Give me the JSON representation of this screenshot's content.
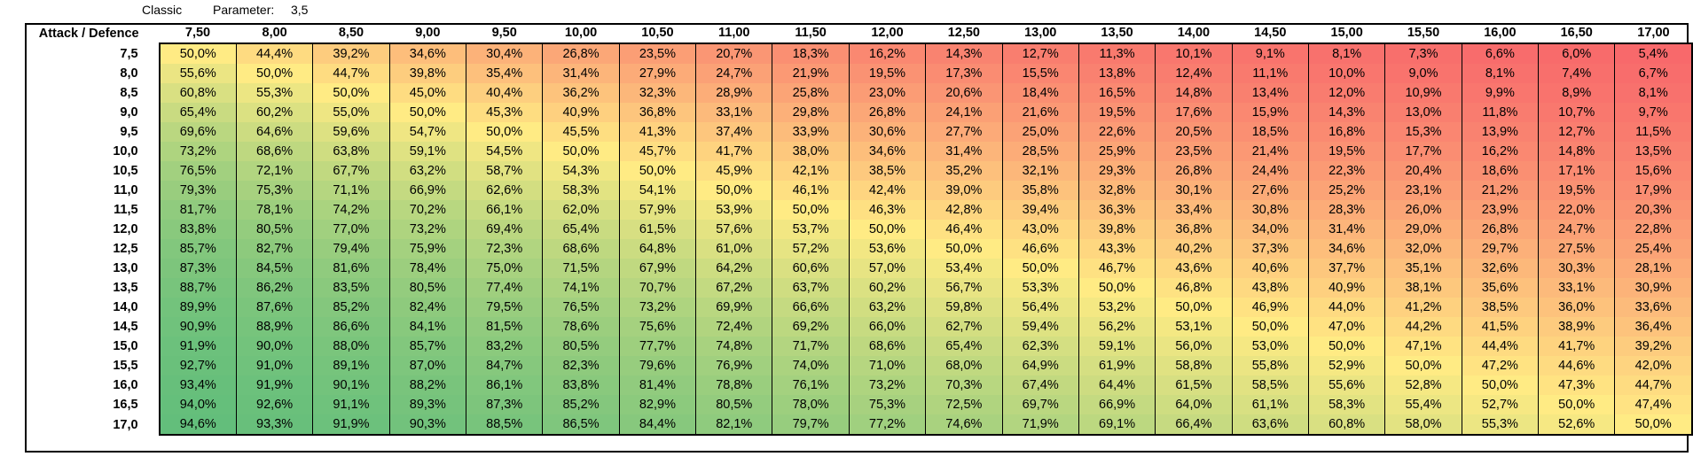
{
  "header": {
    "mode": "Classic",
    "parameter_label": "Parameter:",
    "parameter_value": "3,5"
  },
  "table": {
    "corner_label": "Attack / Defence",
    "columns": [
      "7,50",
      "8,00",
      "8,50",
      "9,00",
      "9,50",
      "10,00",
      "10,50",
      "11,00",
      "11,50",
      "12,00",
      "12,50",
      "13,00",
      "13,50",
      "14,00",
      "14,50",
      "15,00",
      "15,50",
      "16,00",
      "16,50",
      "17,00"
    ],
    "rows": [
      {
        "label": "7,5",
        "values": [
          "50,0%",
          "44,4%",
          "39,2%",
          "34,6%",
          "30,4%",
          "26,8%",
          "23,5%",
          "20,7%",
          "18,3%",
          "16,2%",
          "14,3%",
          "12,7%",
          "11,3%",
          "10,1%",
          "9,1%",
          "8,1%",
          "7,3%",
          "6,6%",
          "6,0%",
          "5,4%"
        ]
      },
      {
        "label": "8,0",
        "values": [
          "55,6%",
          "50,0%",
          "44,7%",
          "39,8%",
          "35,4%",
          "31,4%",
          "27,9%",
          "24,7%",
          "21,9%",
          "19,5%",
          "17,3%",
          "15,5%",
          "13,8%",
          "12,4%",
          "11,1%",
          "10,0%",
          "9,0%",
          "8,1%",
          "7,4%",
          "6,7%"
        ]
      },
      {
        "label": "8,5",
        "values": [
          "60,8%",
          "55,3%",
          "50,0%",
          "45,0%",
          "40,4%",
          "36,2%",
          "32,3%",
          "28,9%",
          "25,8%",
          "23,0%",
          "20,6%",
          "18,4%",
          "16,5%",
          "14,8%",
          "13,4%",
          "12,0%",
          "10,9%",
          "9,9%",
          "8,9%",
          "8,1%"
        ]
      },
      {
        "label": "9,0",
        "values": [
          "65,4%",
          "60,2%",
          "55,0%",
          "50,0%",
          "45,3%",
          "40,9%",
          "36,8%",
          "33,1%",
          "29,8%",
          "26,8%",
          "24,1%",
          "21,6%",
          "19,5%",
          "17,6%",
          "15,9%",
          "14,3%",
          "13,0%",
          "11,8%",
          "10,7%",
          "9,7%"
        ]
      },
      {
        "label": "9,5",
        "values": [
          "69,6%",
          "64,6%",
          "59,6%",
          "54,7%",
          "50,0%",
          "45,5%",
          "41,3%",
          "37,4%",
          "33,9%",
          "30,6%",
          "27,7%",
          "25,0%",
          "22,6%",
          "20,5%",
          "18,5%",
          "16,8%",
          "15,3%",
          "13,9%",
          "12,7%",
          "11,5%"
        ]
      },
      {
        "label": "10,0",
        "values": [
          "73,2%",
          "68,6%",
          "63,8%",
          "59,1%",
          "54,5%",
          "50,0%",
          "45,7%",
          "41,7%",
          "38,0%",
          "34,6%",
          "31,4%",
          "28,5%",
          "25,9%",
          "23,5%",
          "21,4%",
          "19,5%",
          "17,7%",
          "16,2%",
          "14,8%",
          "13,5%"
        ]
      },
      {
        "label": "10,5",
        "values": [
          "76,5%",
          "72,1%",
          "67,7%",
          "63,2%",
          "58,7%",
          "54,3%",
          "50,0%",
          "45,9%",
          "42,1%",
          "38,5%",
          "35,2%",
          "32,1%",
          "29,3%",
          "26,8%",
          "24,4%",
          "22,3%",
          "20,4%",
          "18,6%",
          "17,1%",
          "15,6%"
        ]
      },
      {
        "label": "11,0",
        "values": [
          "79,3%",
          "75,3%",
          "71,1%",
          "66,9%",
          "62,6%",
          "58,3%",
          "54,1%",
          "50,0%",
          "46,1%",
          "42,4%",
          "39,0%",
          "35,8%",
          "32,8%",
          "30,1%",
          "27,6%",
          "25,2%",
          "23,1%",
          "21,2%",
          "19,5%",
          "17,9%"
        ]
      },
      {
        "label": "11,5",
        "values": [
          "81,7%",
          "78,1%",
          "74,2%",
          "70,2%",
          "66,1%",
          "62,0%",
          "57,9%",
          "53,9%",
          "50,0%",
          "46,3%",
          "42,8%",
          "39,4%",
          "36,3%",
          "33,4%",
          "30,8%",
          "28,3%",
          "26,0%",
          "23,9%",
          "22,0%",
          "20,3%"
        ]
      },
      {
        "label": "12,0",
        "values": [
          "83,8%",
          "80,5%",
          "77,0%",
          "73,2%",
          "69,4%",
          "65,4%",
          "61,5%",
          "57,6%",
          "53,7%",
          "50,0%",
          "46,4%",
          "43,0%",
          "39,8%",
          "36,8%",
          "34,0%",
          "31,4%",
          "29,0%",
          "26,8%",
          "24,7%",
          "22,8%"
        ]
      },
      {
        "label": "12,5",
        "values": [
          "85,7%",
          "82,7%",
          "79,4%",
          "75,9%",
          "72,3%",
          "68,6%",
          "64,8%",
          "61,0%",
          "57,2%",
          "53,6%",
          "50,0%",
          "46,6%",
          "43,3%",
          "40,2%",
          "37,3%",
          "34,6%",
          "32,0%",
          "29,7%",
          "27,5%",
          "25,4%"
        ]
      },
      {
        "label": "13,0",
        "values": [
          "87,3%",
          "84,5%",
          "81,6%",
          "78,4%",
          "75,0%",
          "71,5%",
          "67,9%",
          "64,2%",
          "60,6%",
          "57,0%",
          "53,4%",
          "50,0%",
          "46,7%",
          "43,6%",
          "40,6%",
          "37,7%",
          "35,1%",
          "32,6%",
          "30,3%",
          "28,1%"
        ]
      },
      {
        "label": "13,5",
        "values": [
          "88,7%",
          "86,2%",
          "83,5%",
          "80,5%",
          "77,4%",
          "74,1%",
          "70,7%",
          "67,2%",
          "63,7%",
          "60,2%",
          "56,7%",
          "53,3%",
          "50,0%",
          "46,8%",
          "43,8%",
          "40,9%",
          "38,1%",
          "35,6%",
          "33,1%",
          "30,9%"
        ]
      },
      {
        "label": "14,0",
        "values": [
          "89,9%",
          "87,6%",
          "85,2%",
          "82,4%",
          "79,5%",
          "76,5%",
          "73,2%",
          "69,9%",
          "66,6%",
          "63,2%",
          "59,8%",
          "56,4%",
          "53,2%",
          "50,0%",
          "46,9%",
          "44,0%",
          "41,2%",
          "38,5%",
          "36,0%",
          "33,6%"
        ]
      },
      {
        "label": "14,5",
        "values": [
          "90,9%",
          "88,9%",
          "86,6%",
          "84,1%",
          "81,5%",
          "78,6%",
          "75,6%",
          "72,4%",
          "69,2%",
          "66,0%",
          "62,7%",
          "59,4%",
          "56,2%",
          "53,1%",
          "50,0%",
          "47,0%",
          "44,2%",
          "41,5%",
          "38,9%",
          "36,4%"
        ]
      },
      {
        "label": "15,0",
        "values": [
          "91,9%",
          "90,0%",
          "88,0%",
          "85,7%",
          "83,2%",
          "80,5%",
          "77,7%",
          "74,8%",
          "71,7%",
          "68,6%",
          "65,4%",
          "62,3%",
          "59,1%",
          "56,0%",
          "53,0%",
          "50,0%",
          "47,1%",
          "44,4%",
          "41,7%",
          "39,2%"
        ]
      },
      {
        "label": "15,5",
        "values": [
          "92,7%",
          "91,0%",
          "89,1%",
          "87,0%",
          "84,7%",
          "82,3%",
          "79,6%",
          "76,9%",
          "74,0%",
          "71,0%",
          "68,0%",
          "64,9%",
          "61,9%",
          "58,8%",
          "55,8%",
          "52,9%",
          "50,0%",
          "47,2%",
          "44,6%",
          "42,0%"
        ]
      },
      {
        "label": "16,0",
        "values": [
          "93,4%",
          "91,9%",
          "90,1%",
          "88,2%",
          "86,1%",
          "83,8%",
          "81,4%",
          "78,8%",
          "76,1%",
          "73,2%",
          "70,3%",
          "67,4%",
          "64,4%",
          "61,5%",
          "58,5%",
          "55,6%",
          "52,8%",
          "50,0%",
          "47,3%",
          "44,7%"
        ]
      },
      {
        "label": "16,5",
        "values": [
          "94,0%",
          "92,6%",
          "91,1%",
          "89,3%",
          "87,3%",
          "85,2%",
          "82,9%",
          "80,5%",
          "78,0%",
          "75,3%",
          "72,5%",
          "69,7%",
          "66,9%",
          "64,0%",
          "61,1%",
          "58,3%",
          "55,4%",
          "52,7%",
          "50,0%",
          "47,4%"
        ]
      },
      {
        "label": "17,0",
        "values": [
          "94,6%",
          "93,3%",
          "91,9%",
          "90,3%",
          "88,5%",
          "86,5%",
          "84,4%",
          "82,1%",
          "79,7%",
          "77,2%",
          "74,6%",
          "71,9%",
          "69,1%",
          "66,4%",
          "63,6%",
          "60,8%",
          "58,0%",
          "55,3%",
          "52,6%",
          "50,0%"
        ]
      }
    ]
  },
  "colors": {
    "scale_low": "#f8696b",
    "scale_mid": "#ffeb84",
    "scale_high": "#63be7b",
    "border": "#000000"
  }
}
